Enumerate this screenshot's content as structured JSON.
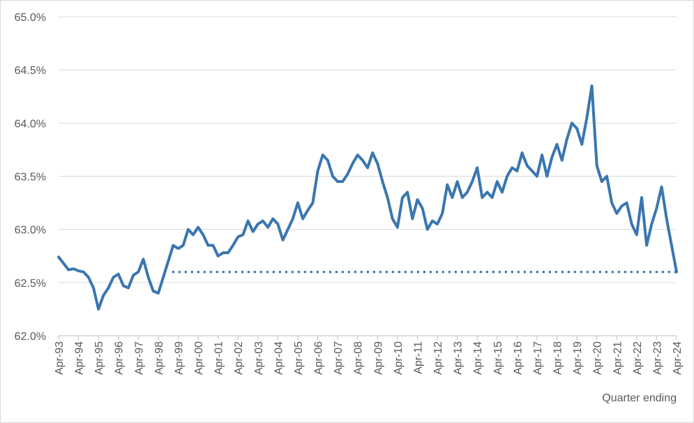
{
  "chart_data": {
    "type": "line",
    "x_label": "Quarter ending",
    "ylim": [
      62,
      65
    ],
    "yticks": [
      {
        "value": 62,
        "label": "62.0%"
      },
      {
        "value": 62.5,
        "label": "62.5%"
      },
      {
        "value": 63,
        "label": "63.0%"
      },
      {
        "value": 63.5,
        "label": "63.5%"
      },
      {
        "value": 64,
        "label": "64.0%"
      },
      {
        "value": 64.5,
        "label": "64.5%"
      },
      {
        "value": 65,
        "label": "65.0%"
      }
    ],
    "grid": true,
    "categories": [
      "Apr-93",
      null,
      null,
      null,
      "Apr-94",
      null,
      null,
      null,
      "Apr-95",
      null,
      null,
      null,
      "Apr-96",
      null,
      null,
      null,
      "Apr-97",
      null,
      null,
      null,
      "Apr-98",
      null,
      null,
      null,
      "Apr-99",
      null,
      null,
      null,
      "Apr-00",
      null,
      null,
      null,
      "Apr-01",
      null,
      null,
      null,
      "Apr-02",
      null,
      null,
      null,
      "Apr-03",
      null,
      null,
      null,
      "Apr-04",
      null,
      null,
      null,
      "Apr-05",
      null,
      null,
      null,
      "Apr-06",
      null,
      null,
      null,
      "Apr-07",
      null,
      null,
      null,
      "Apr-08",
      null,
      null,
      null,
      "Apr-09",
      null,
      null,
      null,
      "Apr-10",
      null,
      null,
      null,
      "Apr-11",
      null,
      null,
      null,
      "Apr-12",
      null,
      null,
      null,
      "Apr-13",
      null,
      null,
      null,
      "Apr-14",
      null,
      null,
      null,
      "Apr-15",
      null,
      null,
      null,
      "Apr-16",
      null,
      null,
      null,
      "Apr-17",
      null,
      null,
      null,
      "Apr-18",
      null,
      null,
      null,
      "Apr-19",
      null,
      null,
      null,
      "Apr-20",
      null,
      null,
      null,
      "Apr-21",
      null,
      null,
      null,
      "Apr-22",
      null,
      null,
      null,
      "Apr-23",
      null,
      null,
      null,
      "Apr-24"
    ],
    "series": [
      {
        "color": "#3a76b0",
        "style": "solid",
        "values": [
          62.74,
          62.68,
          62.62,
          62.63,
          62.61,
          62.6,
          62.55,
          62.45,
          62.25,
          62.38,
          62.45,
          62.55,
          62.58,
          62.47,
          62.45,
          62.57,
          62.6,
          62.72,
          62.55,
          62.42,
          62.4,
          62.55,
          62.7,
          62.85,
          62.82,
          62.85,
          63.0,
          62.95,
          63.02,
          62.95,
          62.85,
          62.85,
          62.75,
          62.78,
          62.78,
          62.85,
          62.93,
          62.95,
          63.08,
          62.98,
          63.05,
          63.08,
          63.02,
          63.1,
          63.05,
          62.9,
          63.0,
          63.1,
          63.25,
          63.1,
          63.18,
          63.25,
          63.55,
          63.7,
          63.65,
          63.5,
          63.45,
          63.45,
          63.52,
          63.62,
          63.7,
          63.65,
          63.58,
          63.72,
          63.62,
          63.45,
          63.3,
          63.1,
          63.02,
          63.3,
          63.35,
          63.1,
          63.28,
          63.2,
          63.0,
          63.08,
          63.05,
          63.15,
          63.42,
          63.3,
          63.45,
          63.3,
          63.35,
          63.45,
          63.58,
          63.3,
          63.35,
          63.3,
          63.45,
          63.35,
          63.5,
          63.58,
          63.55,
          63.72,
          63.6,
          63.55,
          63.5,
          63.7,
          63.5,
          63.68,
          63.8,
          63.65,
          63.85,
          64.0,
          63.95,
          63.8,
          64.05,
          64.35,
          63.6,
          63.45,
          63.5,
          63.25,
          63.15,
          63.22,
          63.25,
          63.05,
          62.95,
          63.3,
          62.85,
          63.05,
          63.2,
          63.4,
          63.1,
          62.85,
          62.6
        ]
      },
      {
        "color": "#3a76b0",
        "style": "dotted",
        "values": [
          null,
          null,
          null,
          null,
          null,
          null,
          null,
          null,
          null,
          null,
          null,
          null,
          null,
          null,
          null,
          null,
          null,
          null,
          null,
          null,
          null,
          null,
          null,
          62.6,
          62.6,
          62.6,
          62.6,
          62.6,
          62.6,
          62.6,
          62.6,
          62.6,
          62.6,
          62.6,
          62.6,
          62.6,
          62.6,
          62.6,
          62.6,
          62.6,
          62.6,
          62.6,
          62.6,
          62.6,
          62.6,
          62.6,
          62.6,
          62.6,
          62.6,
          62.6,
          62.6,
          62.6,
          62.6,
          62.6,
          62.6,
          62.6,
          62.6,
          62.6,
          62.6,
          62.6,
          62.6,
          62.6,
          62.6,
          62.6,
          62.6,
          62.6,
          62.6,
          62.6,
          62.6,
          62.6,
          62.6,
          62.6,
          62.6,
          62.6,
          62.6,
          62.6,
          62.6,
          62.6,
          62.6,
          62.6,
          62.6,
          62.6,
          62.6,
          62.6,
          62.6,
          62.6,
          62.6,
          62.6,
          62.6,
          62.6,
          62.6,
          62.6,
          62.6,
          62.6,
          62.6,
          62.6,
          62.6,
          62.6,
          62.6,
          62.6,
          62.6,
          62.6,
          62.6,
          62.6,
          62.6,
          62.6,
          62.6,
          62.6,
          62.6,
          62.6,
          62.6,
          62.6,
          62.6,
          62.6,
          62.6,
          62.6,
          62.6,
          62.6,
          62.6,
          62.6,
          62.6,
          62.6,
          62.6,
          62.6,
          62.6
        ]
      }
    ]
  }
}
